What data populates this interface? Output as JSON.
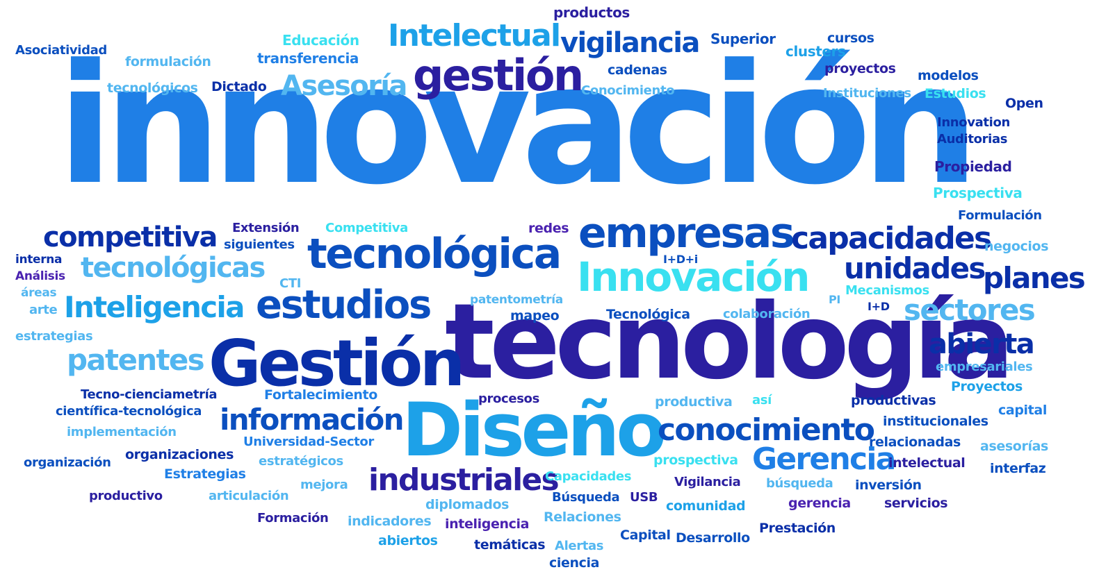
{
  "words": {
    "innovacion": "innovación",
    "tecnologia": "tecnología",
    "diseno": "Diseño",
    "gestion_cap": "Gestión",
    "gestion": "gestión",
    "empresas": "empresas",
    "tecnologica": "tecnológica",
    "innovacion_cap": "Innovación",
    "estudios": "estudios",
    "intelectual_cap": "Intelectual",
    "vigilancia": "vigilancia",
    "capacidades": "capacidades",
    "competitiva": "competitiva",
    "tecnologicas": "tecnológicas",
    "inteligencia_cap": "Inteligencia",
    "patentes": "patentes",
    "informacion": "información",
    "industriales": "industriales",
    "conocimiento": "conocimiento",
    "gerencia_cap": "Gerencia",
    "unidades": "unidades",
    "planes": "planes",
    "sectores": "sectores",
    "abierta": "abierta",
    "asesoria": "Asesoría",
    "productos": "productos",
    "educacion": "Educación",
    "asociatividad": "Asociatividad",
    "formulacion": "formulación",
    "transferencia": "transferencia",
    "tecnologicos": "tecnológicos",
    "dictado": "Dictado",
    "superior": "Superior",
    "cursos": "cursos",
    "clusters": "clusters",
    "cadenas": "cadenas",
    "proyectos": "proyectos",
    "modelos": "modelos",
    "conocimiento_cap": "Conocimiento",
    "instituciones": "Instituciones",
    "estudios_cap": "Estudios",
    "open": "Open",
    "innovation": "Innovation",
    "auditorias": "Auditorias",
    "propiedad": "Propiedad",
    "prospectiva_cap": "Prospectiva",
    "formulacion_cap": "Formulación",
    "extension": "Extensión",
    "siguientes": "siguientes",
    "competitiva_cap": "Competitiva",
    "redes": "redes",
    "negocios": "negocios",
    "interna": "interna",
    "analisis": "Análisis",
    "areas": "áreas",
    "arte": "arte",
    "cti": "CTI",
    "idi": "I+D+i",
    "patentometria": "patentometría",
    "mecanismos": "Mecanismos",
    "pi": "PI",
    "id": "I+D",
    "mapeo": "mapeo",
    "tecnologica_cap": "Tecnológica",
    "colaboracion": "colaboración",
    "estrategias": "estrategias",
    "empresariales": "empresariales",
    "proyectos_cap": "Proyectos",
    "tecno_ciencia": "Tecno-cienciametría",
    "fortalecimiento": "Fortalecimiento",
    "procesos": "procesos",
    "productiva": "productiva",
    "asi": "así",
    "productivas": "productivas",
    "capital": "capital",
    "cientifica": "científica-tecnológica",
    "institucionales": "institucionales",
    "implementacion": "implementación",
    "universidad": "Universidad-Sector",
    "relacionadas": "relacionadas",
    "asesorias": "asesorías",
    "organizacion": "organización",
    "organizaciones": "organizaciones",
    "estrategicos": "estratégicos",
    "prospectiva": "prospectiva",
    "intelectual": "intelectual",
    "interfaz": "interfaz",
    "estrategias_cap": "Estrategias",
    "capacidades_cap": "Capacidades",
    "vigilancia_cap": "Vigilancia",
    "busqueda": "búsqueda",
    "inversion": "inversión",
    "productivo": "productivo",
    "articulacion": "articulación",
    "mejora": "mejora",
    "diplomados": "diplomados",
    "busqueda_cap": "Búsqueda",
    "usb": "USB",
    "comunidad": "comunidad",
    "gerencia": "gerencia",
    "servicios": "servicios",
    "formacion": "Formación",
    "indicadores": "indicadores",
    "inteligencia": "inteligencia",
    "relaciones": "Relaciones",
    "prestacion": "Prestación",
    "abiertos": "abiertos",
    "capital_cap": "Capital",
    "desarrollo": "Desarrollo",
    "tematicas": "temáticas",
    "alertas": "Alertas",
    "ciencia": "ciencia"
  },
  "colors": {
    "medium_blue": "#1f7fe6",
    "dark_blue": "#0a2fa8",
    "indigo": "#2b1fa0",
    "sky_blue": "#1da1e8",
    "cyan": "#39e0f0",
    "blue": "#0b4fbf",
    "purple": "#4a22b0",
    "light_blue": "#52b6f0"
  }
}
